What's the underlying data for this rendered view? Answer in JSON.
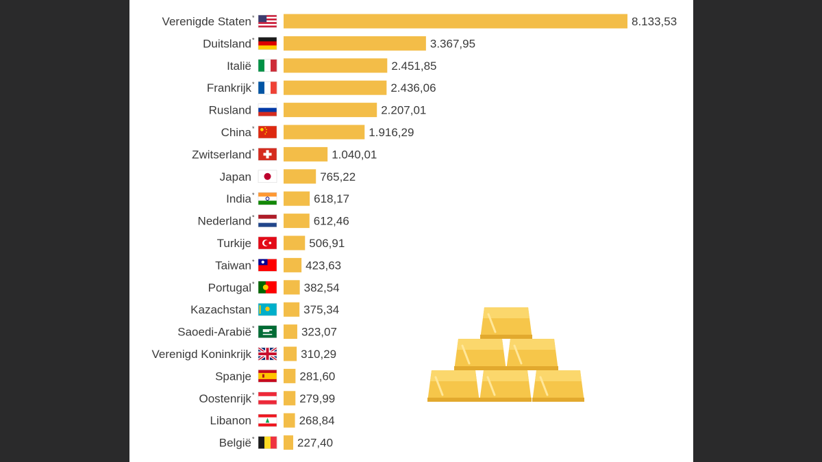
{
  "chart_data": {
    "type": "bar",
    "orientation": "horizontal",
    "title": "",
    "xlabel": "",
    "ylabel": "",
    "xlim": [
      0,
      8133.53
    ],
    "bar_color": "#f3bd48",
    "label_color": "#3a3a3a",
    "background": "#ffffff",
    "frame_color": "#2a2a2b",
    "categories": [
      "Verenigde Staten",
      "Duitsland",
      "Italië",
      "Frankrijk",
      "Rusland",
      "China",
      "Zwitserland",
      "Japan",
      "India",
      "Nederland",
      "Turkije",
      "Taiwan",
      "Portugal",
      "Kazachstan",
      "Saoedi-Arabië",
      "Verenigd Koninkrijk",
      "Spanje",
      "Oostenrijk",
      "Libanon",
      "België"
    ],
    "asterisk": [
      true,
      true,
      false,
      true,
      false,
      true,
      true,
      false,
      true,
      true,
      false,
      true,
      true,
      false,
      true,
      false,
      false,
      true,
      false,
      true
    ],
    "flags": [
      "us",
      "de",
      "it",
      "fr",
      "ru",
      "cn",
      "ch",
      "jp",
      "in",
      "nl",
      "tr",
      "tw",
      "pt",
      "kz",
      "sa",
      "gb",
      "es",
      "at",
      "lb",
      "be"
    ],
    "values": [
      8133.53,
      3367.95,
      2451.85,
      2436.06,
      2207.01,
      1916.29,
      1040.01,
      765.22,
      618.17,
      612.46,
      506.91,
      423.63,
      382.54,
      375.34,
      323.07,
      310.29,
      281.6,
      279.99,
      268.84,
      227.4
    ],
    "value_labels": [
      "8.133,53",
      "3.367,95",
      "2.451,85",
      "2.436,06",
      "2.207,01",
      "1.916,29",
      "1.040,01",
      "765,22",
      "618,17",
      "612,46",
      "506,91",
      "423,63",
      "382,54",
      "375,34",
      "323,07",
      "310,29",
      "281,60",
      "279,99",
      "268,84",
      "227,40"
    ],
    "asterisk_symbol": "*",
    "decoration": "gold-bars-icon"
  }
}
